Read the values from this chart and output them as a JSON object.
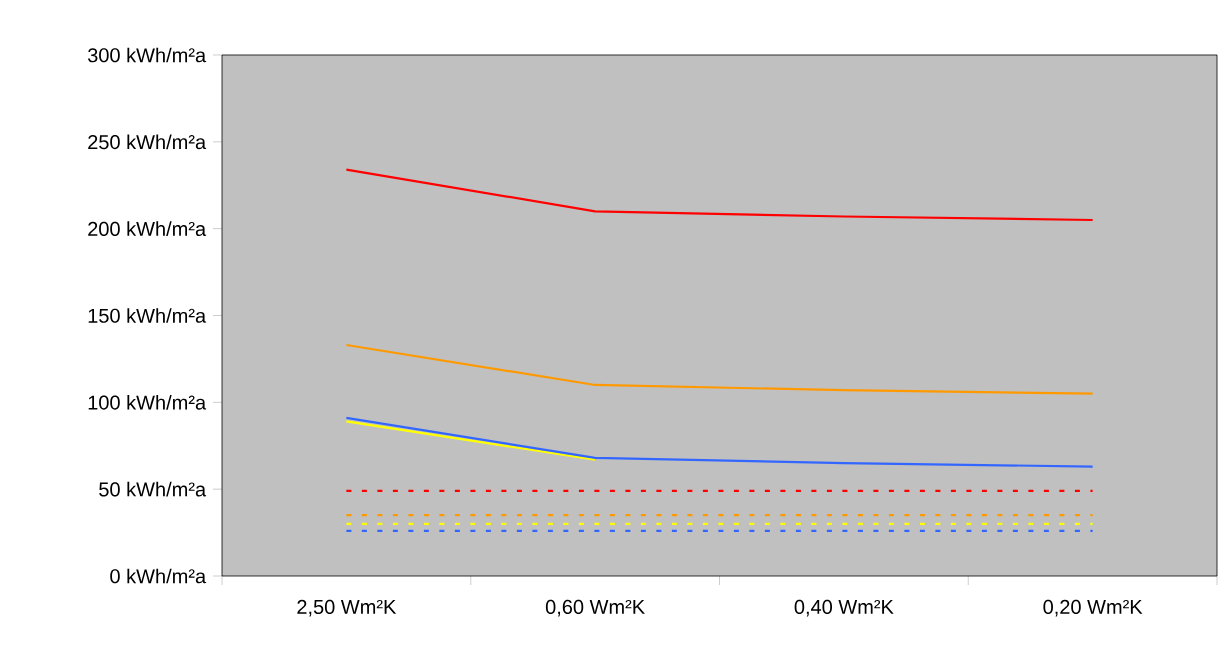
{
  "chart_data": {
    "type": "line",
    "categories": [
      "2,50 Wm²K",
      "0,60 Wm²K",
      "0,40 Wm²K",
      "0,20 Wm²K"
    ],
    "series": [
      {
        "color": "#ff0000",
        "values": [
          234,
          210,
          207,
          205
        ],
        "line_style": "solid"
      },
      {
        "color": "#ff9900",
        "values": [
          133,
          110,
          107,
          105
        ],
        "line_style": "solid"
      },
      {
        "color": "#ffff00",
        "values": [
          89,
          67,
          null,
          null
        ],
        "line_style": "solid"
      },
      {
        "color": "#3366ff",
        "values": [
          91,
          68,
          65,
          63
        ],
        "line_style": "solid"
      },
      {
        "color": "#ff0000",
        "values": [
          49,
          49,
          49,
          49
        ],
        "line_style": "dashed"
      },
      {
        "color": "#ff9900",
        "values": [
          35,
          35,
          35,
          35
        ],
        "line_style": "dashed"
      },
      {
        "color": "#ffff00",
        "values": [
          30,
          30,
          30,
          30
        ],
        "line_style": "dashed"
      },
      {
        "color": "#3366ff",
        "values": [
          26,
          26,
          26,
          26
        ],
        "line_style": "dashed"
      }
    ],
    "ylim": [
      0,
      300
    ],
    "yticks": [
      {
        "value": 0,
        "label": "0 kWh/m²a"
      },
      {
        "value": 50,
        "label": "50 kWh/m²a"
      },
      {
        "value": 100,
        "label": "100 kWh/m²a"
      },
      {
        "value": 150,
        "label": "150 kWh/m²a"
      },
      {
        "value": 200,
        "label": "200 kWh/m²a"
      },
      {
        "value": 250,
        "label": "250 kWh/m²a"
      },
      {
        "value": 300,
        "label": "300 kWh/m²a"
      }
    ],
    "grid": false,
    "marker": "none"
  }
}
